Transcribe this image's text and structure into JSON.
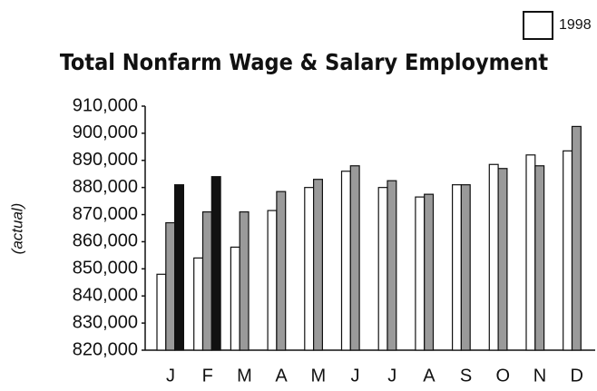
{
  "chart_data": {
    "type": "bar",
    "title": "Total Nonfarm Wage & Salary Employment",
    "y_label": "(actual)",
    "categories": [
      "J",
      "F",
      "M",
      "A",
      "M",
      "J",
      "J",
      "A",
      "S",
      "O",
      "N",
      "D"
    ],
    "series": [
      {
        "name": "1998",
        "color": "#ffffff",
        "values": [
          848000,
          854000,
          858000,
          871500,
          880000,
          886000,
          880000,
          876500,
          881000,
          888500,
          892000,
          893500
        ]
      },
      {
        "color": "#9a9a9a",
        "values": [
          867000,
          871000,
          871000,
          878500,
          883000,
          888000,
          882500,
          877500,
          881000,
          887000,
          888000,
          902500
        ]
      },
      {
        "color": "#111111",
        "values": [
          881000,
          884000,
          null,
          null,
          null,
          null,
          null,
          null,
          null,
          null,
          null,
          null
        ]
      }
    ],
    "ylim": [
      820000,
      910000
    ],
    "yticks": [
      {
        "value": 820000,
        "label": "820,000"
      },
      {
        "value": 830000,
        "label": "830,000"
      },
      {
        "value": 840000,
        "label": "840,000"
      },
      {
        "value": 850000,
        "label": "850,000"
      },
      {
        "value": 860000,
        "label": "860,000"
      },
      {
        "value": 870000,
        "label": "870,000"
      },
      {
        "value": 880000,
        "label": "880,000"
      },
      {
        "value": 890000,
        "label": "890,000"
      },
      {
        "value": 900000,
        "label": "900,000"
      },
      {
        "value": 910000,
        "label": "910,000"
      }
    ],
    "grid": false
  }
}
